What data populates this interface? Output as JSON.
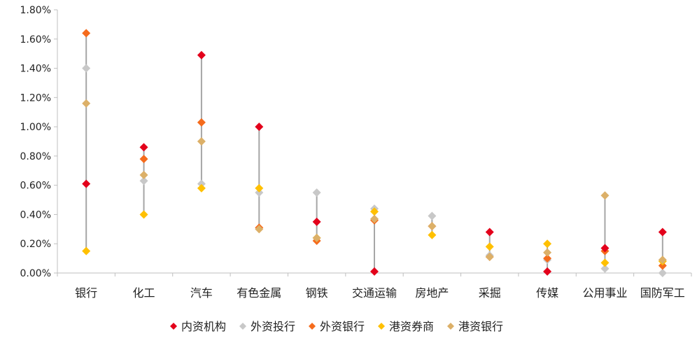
{
  "chart_data": {
    "type": "scatter",
    "title": "",
    "xlabel": "",
    "ylabel": "",
    "ylim": [
      0,
      0.018
    ],
    "y_ticks": [
      "0.00%",
      "0.20%",
      "0.40%",
      "0.60%",
      "0.80%",
      "1.00%",
      "1.20%",
      "1.40%",
      "1.60%",
      "1.80%"
    ],
    "grid": false,
    "legend_position": "bottom",
    "categories": [
      "银行",
      "化工",
      "汽车",
      "有色金属",
      "钢铁",
      "交通运输",
      "房地产",
      "采掘",
      "传媒",
      "公用事业",
      "国防军工"
    ],
    "series": [
      {
        "name": "内资机构",
        "color": "#e3001b",
        "values": [
          0.0061,
          0.0086,
          0.0149,
          0.01,
          0.0035,
          0.0001,
          null,
          0.0028,
          0.0001,
          0.0017,
          0.0028
        ]
      },
      {
        "name": "外资投行",
        "color": "#c8c8c8",
        "values": [
          0.014,
          0.0063,
          0.0061,
          0.0055,
          0.0055,
          0.0044,
          0.0039,
          0.0012,
          0.0009,
          0.0003,
          0.0
        ]
      },
      {
        "name": "外资银行",
        "color": "#f56b1c",
        "values": [
          0.0164,
          0.0078,
          0.0103,
          0.0031,
          0.0022,
          0.0036,
          0.0032,
          0.0011,
          0.001,
          0.0015,
          0.0005
        ]
      },
      {
        "name": "港资券商",
        "color": "#ffc000",
        "values": [
          0.0015,
          0.004,
          0.0058,
          0.0058,
          0.0024,
          0.0042,
          0.0026,
          0.0018,
          0.002,
          0.0007,
          0.0008
        ]
      },
      {
        "name": "港资银行",
        "color": "#dcb068",
        "values": [
          0.0116,
          0.0067,
          0.009,
          0.003,
          0.0024,
          0.0037,
          0.0032,
          0.0011,
          0.0014,
          0.0053,
          0.0009
        ]
      }
    ],
    "range_line_color": "#a6a6a6",
    "axis_color": "#bfbfbf"
  }
}
